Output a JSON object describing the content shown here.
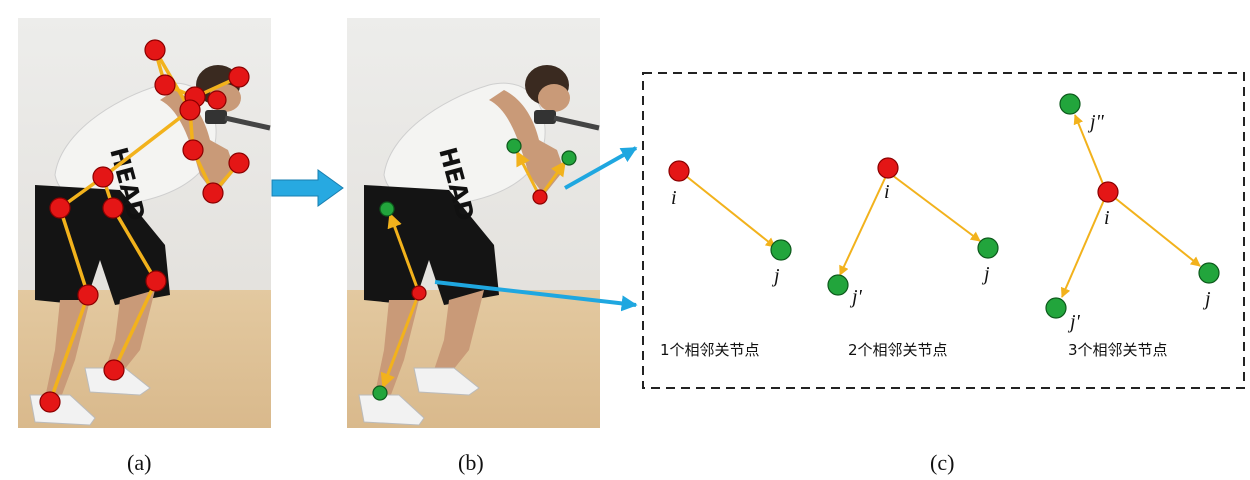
{
  "captions": {
    "a": "(a)",
    "b": "(b)",
    "c": "(c)"
  },
  "colors": {
    "parent_node": "#e41616",
    "child_node": "#22a53c",
    "bone": "#f2b21c",
    "pointer_arrow": "#1fa7e0",
    "transition_arrow": "#27a9e1",
    "frame_dash": "#222222"
  },
  "photo_text": {
    "shirt_logo": "HEAD"
  },
  "panel_c": {
    "groups": [
      {
        "label": "1个相邻关节点",
        "center_label": "i",
        "neighbor_labels": [
          "j"
        ]
      },
      {
        "label": "2个相邻关节点",
        "center_label": "i",
        "neighbor_labels": [
          "j'",
          "j"
        ]
      },
      {
        "label": "3个相邻关节点",
        "center_label": "i",
        "neighbor_labels": [
          "j\"",
          "j'",
          "j"
        ]
      }
    ]
  }
}
